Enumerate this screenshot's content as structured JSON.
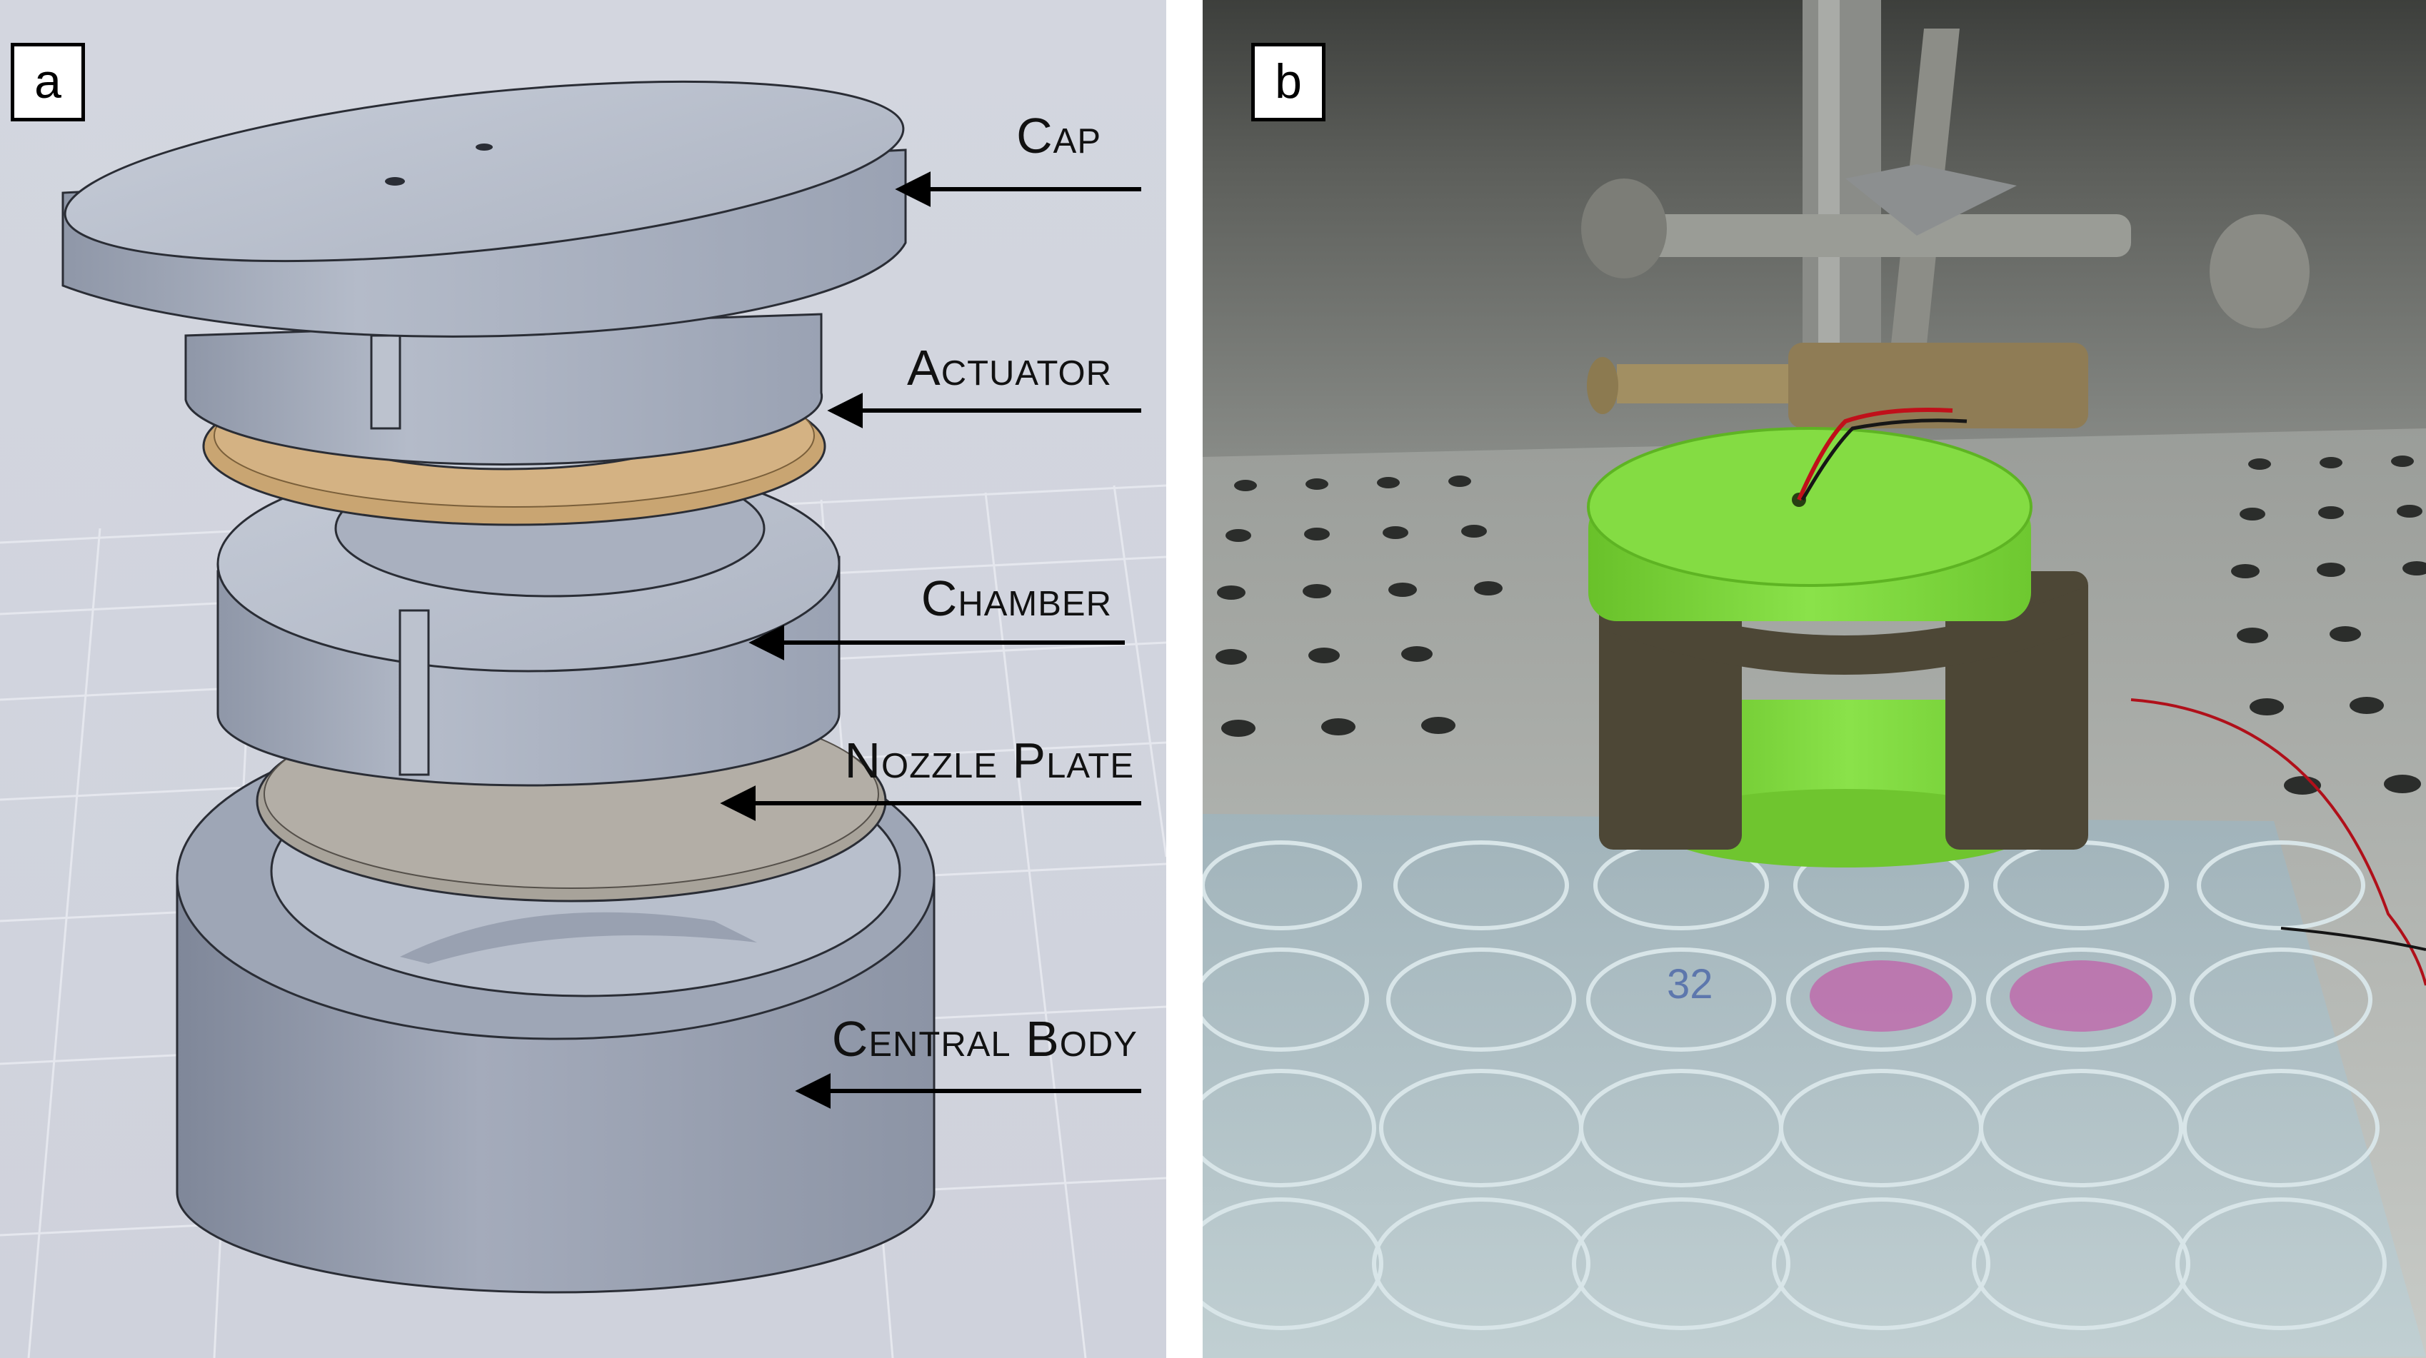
{
  "panels": {
    "a": {
      "letter": "a",
      "labels": {
        "cap": "Cap",
        "actuator": "Actuator",
        "chamber": "Chamber",
        "nozzle_plate": "Nozzle Plate",
        "central_body": "Central Body"
      }
    },
    "b": {
      "letter": "b",
      "well_plate_marking": "32"
    }
  },
  "colors": {
    "cad_body": "#a9b0bf",
    "actuator_brass": "#c9a572",
    "nozzle_plate": "#a8a39a",
    "printed_part_green": "#7ed63a",
    "wire_red": "#c0101a"
  }
}
